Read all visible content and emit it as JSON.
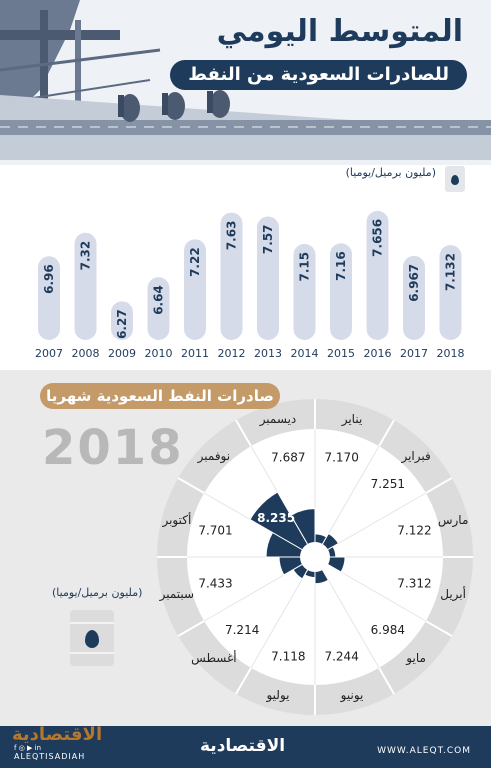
{
  "header": {
    "title": "المتوسط اليومي",
    "subtitle": "للصادرات السعودية من النفط"
  },
  "unit": "(مليون برميل/يوميا)",
  "monthly_title": "صادرات النفط السعودية شهريا",
  "year": "2018",
  "footer": {
    "logo": "الاقتصادية",
    "handle": "ALEQTISADIAH",
    "website": "WWW.ALEQT.COM",
    "social_icons": "f ◎ ▶ in"
  },
  "colors": {
    "navy": "#1f3b5c",
    "bar_fill": "#d5dbe8",
    "ring": "#dcdcdc",
    "gold": "#c49a69"
  },
  "chart_data": [
    {
      "type": "bar",
      "categories": [
        "2007",
        "2008",
        "2009",
        "2010",
        "2011",
        "2012",
        "2013",
        "2014",
        "2015",
        "2016",
        "2017",
        "2018"
      ],
      "values": [
        6.96,
        7.32,
        6.27,
        6.64,
        7.22,
        7.63,
        7.57,
        7.15,
        7.16,
        7.656,
        6.967,
        7.132
      ],
      "labels": [
        "6.96",
        "7.32",
        "6.27",
        "6.64",
        "7.22",
        "7.63",
        "7.57",
        "7.15",
        "7.16",
        "7.656",
        "6.967",
        "7.132"
      ],
      "title": "المتوسط اليومي للصادرات السعودية من النفط",
      "ylabel": "(مليون برميل/يوميا)"
    },
    {
      "type": "polar-area",
      "categories": [
        "يناير",
        "فبراير",
        "مارس",
        "أبريل",
        "مايو",
        "يونيو",
        "يوليو",
        "أغسطس",
        "سبتمبر",
        "أكتوبر",
        "نوفمبر",
        "ديسمبر"
      ],
      "values": [
        7.17,
        7.251,
        7.122,
        7.312,
        6.984,
        7.244,
        7.118,
        7.214,
        7.433,
        7.701,
        8.235,
        7.687
      ],
      "labels": [
        "7.170",
        "7.251",
        "7.122",
        "7.312",
        "6.984",
        "7.244",
        "7.118",
        "7.214",
        "7.433",
        "7.701",
        "8.235",
        "7.687"
      ],
      "title": "صادرات النفط السعودية شهريا",
      "year": "2018"
    }
  ]
}
